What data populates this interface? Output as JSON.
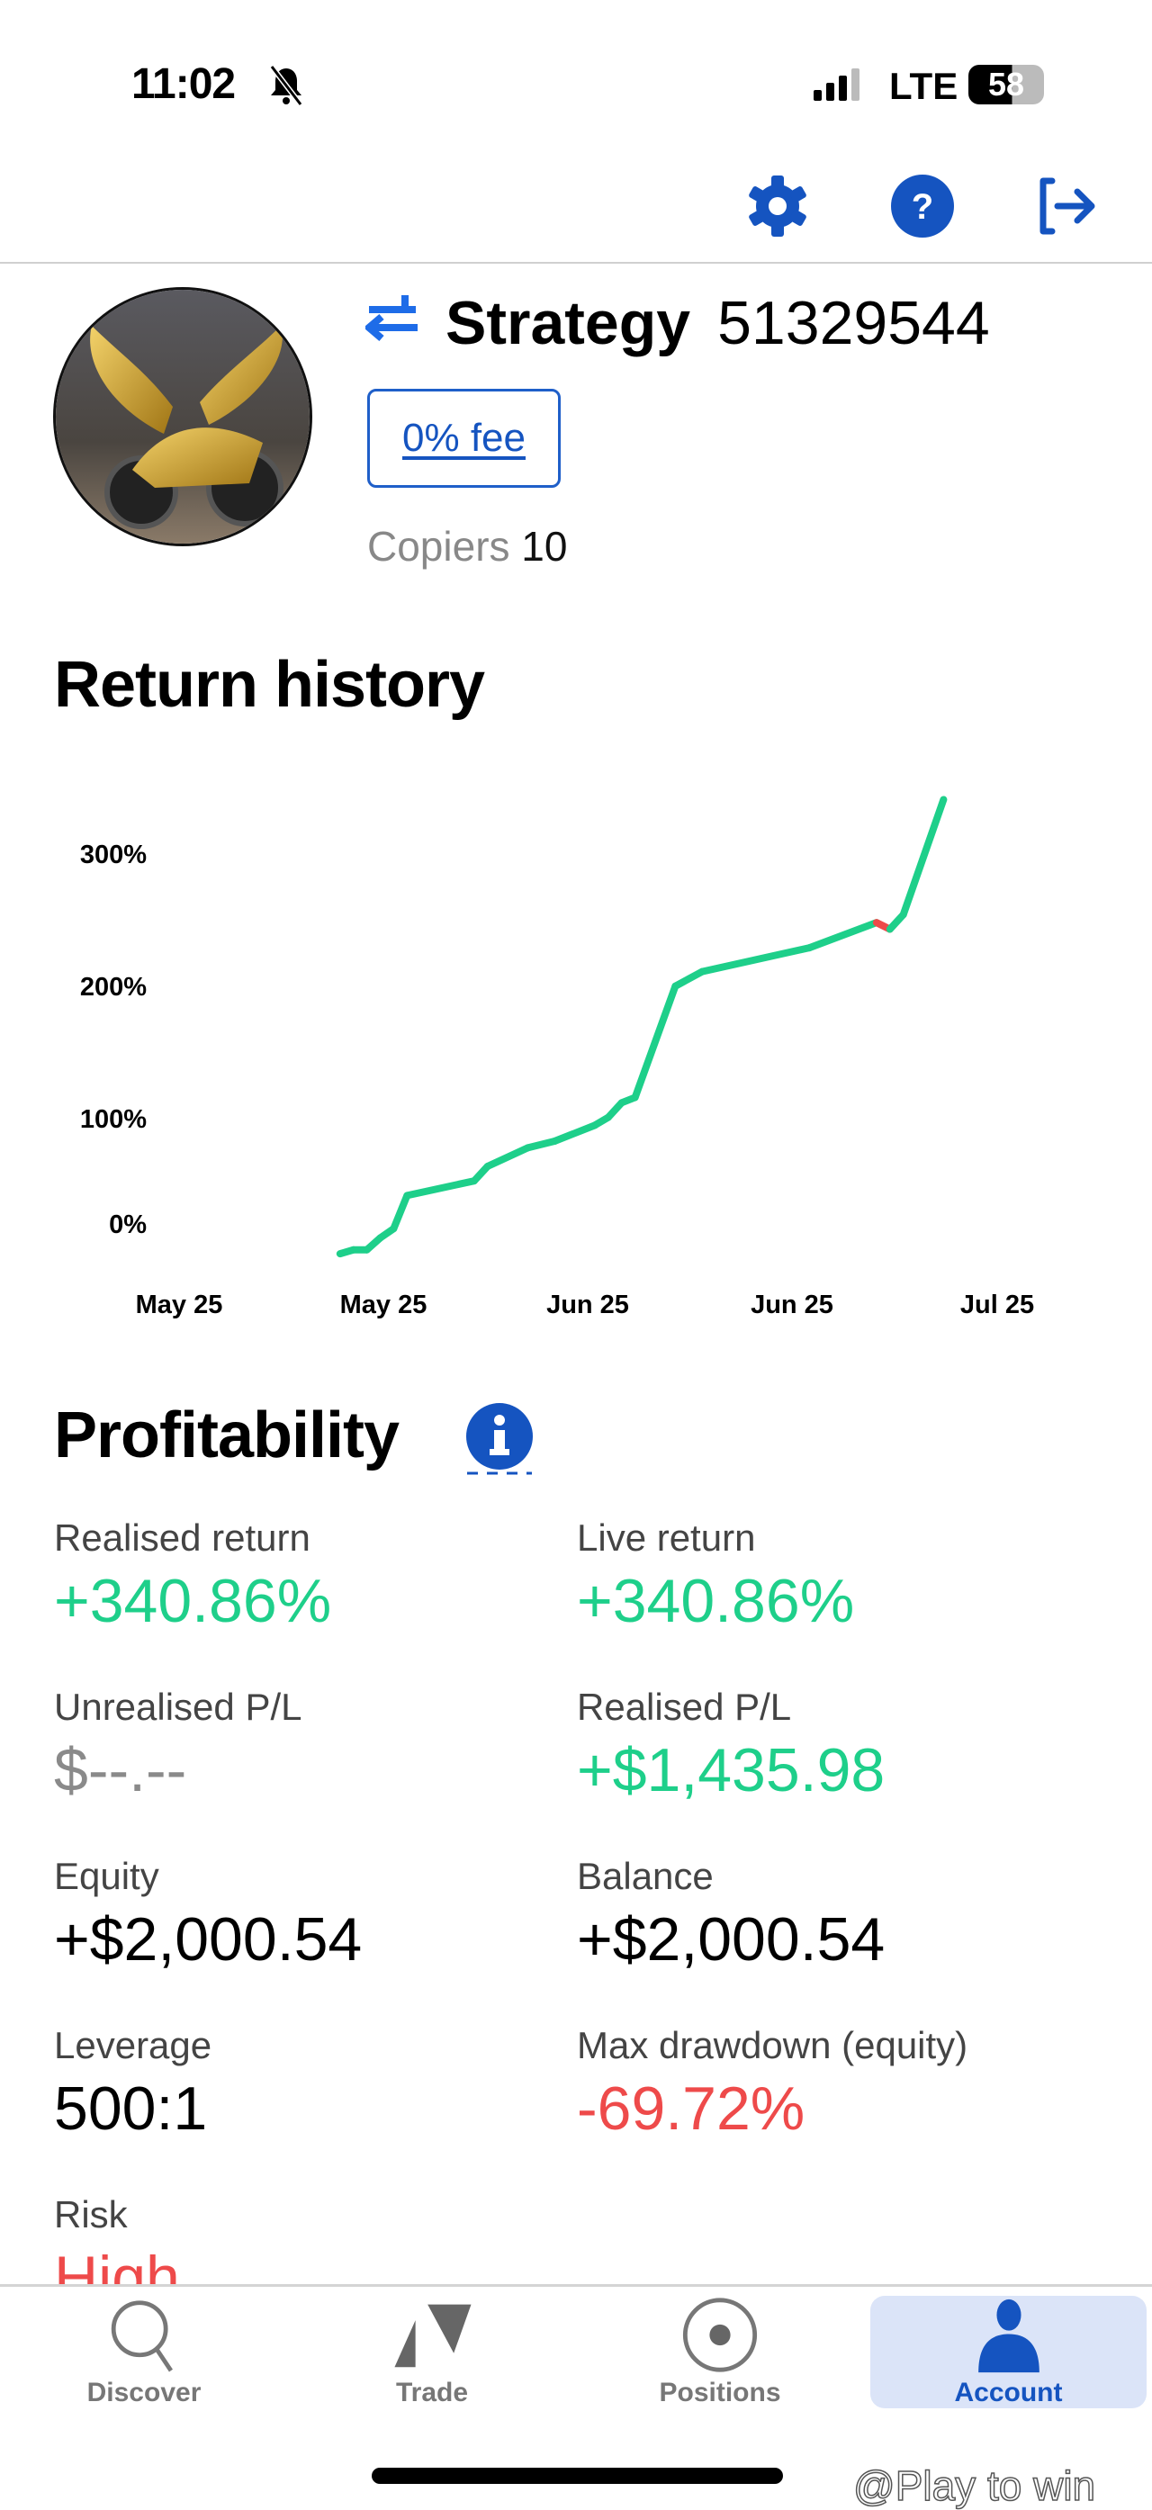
{
  "status_bar": {
    "time": "11:02",
    "network": "LTE",
    "battery": "58",
    "silent_icon": "bell-slash-icon"
  },
  "header": {
    "icons": [
      "gear-icon",
      "help-icon",
      "logout-icon"
    ]
  },
  "profile": {
    "type_icon": "copy-arrows-icon",
    "title": "Strategy",
    "id": "51329544",
    "fee_label": "0% fee",
    "copiers_label": "Copiers",
    "copiers_count": "10"
  },
  "return_history": {
    "title": "Return history"
  },
  "chart_data": {
    "type": "line",
    "title": "Return history",
    "y_ticks": [
      "300%",
      "200%",
      "100%",
      "0%"
    ],
    "x_ticks": [
      "May 25",
      "May 25",
      "Jun 25",
      "Jun 25",
      "Jul 25"
    ],
    "y_unit": "%",
    "colors": {
      "up": "#1ecf8a",
      "down": "#ee4a4a"
    },
    "grid": false,
    "points": [
      {
        "x": "2025-05-13",
        "y": -2
      },
      {
        "x": "2025-05-14",
        "y": 1
      },
      {
        "x": "2025-05-15",
        "y": 1
      },
      {
        "x": "2025-05-16",
        "y": 10
      },
      {
        "x": "2025-05-17",
        "y": 17
      },
      {
        "x": "2025-05-18",
        "y": 42
      },
      {
        "x": "2025-05-23",
        "y": 53
      },
      {
        "x": "2025-05-24",
        "y": 64
      },
      {
        "x": "2025-05-27",
        "y": 78
      },
      {
        "x": "2025-05-29",
        "y": 83
      },
      {
        "x": "2025-06-01",
        "y": 95
      },
      {
        "x": "2025-06-02",
        "y": 101
      },
      {
        "x": "2025-06-03",
        "y": 112
      },
      {
        "x": "2025-06-04",
        "y": 116
      },
      {
        "x": "2025-06-07",
        "y": 200
      },
      {
        "x": "2025-06-09",
        "y": 211
      },
      {
        "x": "2025-06-17",
        "y": 229
      },
      {
        "x": "2025-06-22",
        "y": 248
      },
      {
        "x": "2025-06-23",
        "y": 243
      },
      {
        "x": "2025-06-24",
        "y": 254
      },
      {
        "x": "2025-06-27",
        "y": 340.86
      }
    ]
  },
  "profitability": {
    "title": "Profitability",
    "info_icon": "info-icon",
    "stats": [
      {
        "label": "Realised return",
        "value": "+340.86%",
        "tone": "positive"
      },
      {
        "label": "Live return",
        "value": "+340.86%",
        "tone": "positive"
      },
      {
        "label": "Unrealised P/L",
        "value": "$--.--",
        "tone": "muted"
      },
      {
        "label": "Realised P/L",
        "value": "+$1,435.98",
        "tone": "positive"
      },
      {
        "label": "Equity",
        "value": "+$2,000.54",
        "tone": "neutral"
      },
      {
        "label": "Balance",
        "value": "+$2,000.54",
        "tone": "neutral"
      },
      {
        "label": "Leverage",
        "value": "500:1",
        "tone": "neutral"
      },
      {
        "label": "Max drawdown (equity)",
        "value": "-69.72%",
        "tone": "negative"
      },
      {
        "label": "Risk",
        "value": "High",
        "tone": "negative"
      }
    ]
  },
  "bottom_nav": {
    "items": [
      {
        "label": "Discover",
        "icon": "search-icon",
        "active": false
      },
      {
        "label": "Trade",
        "icon": "trade-triangles-icon",
        "active": false
      },
      {
        "label": "Positions",
        "icon": "positions-target-icon",
        "active": false
      },
      {
        "label": "Account",
        "icon": "user-icon",
        "active": true
      }
    ]
  },
  "watermark": "@Play to win"
}
